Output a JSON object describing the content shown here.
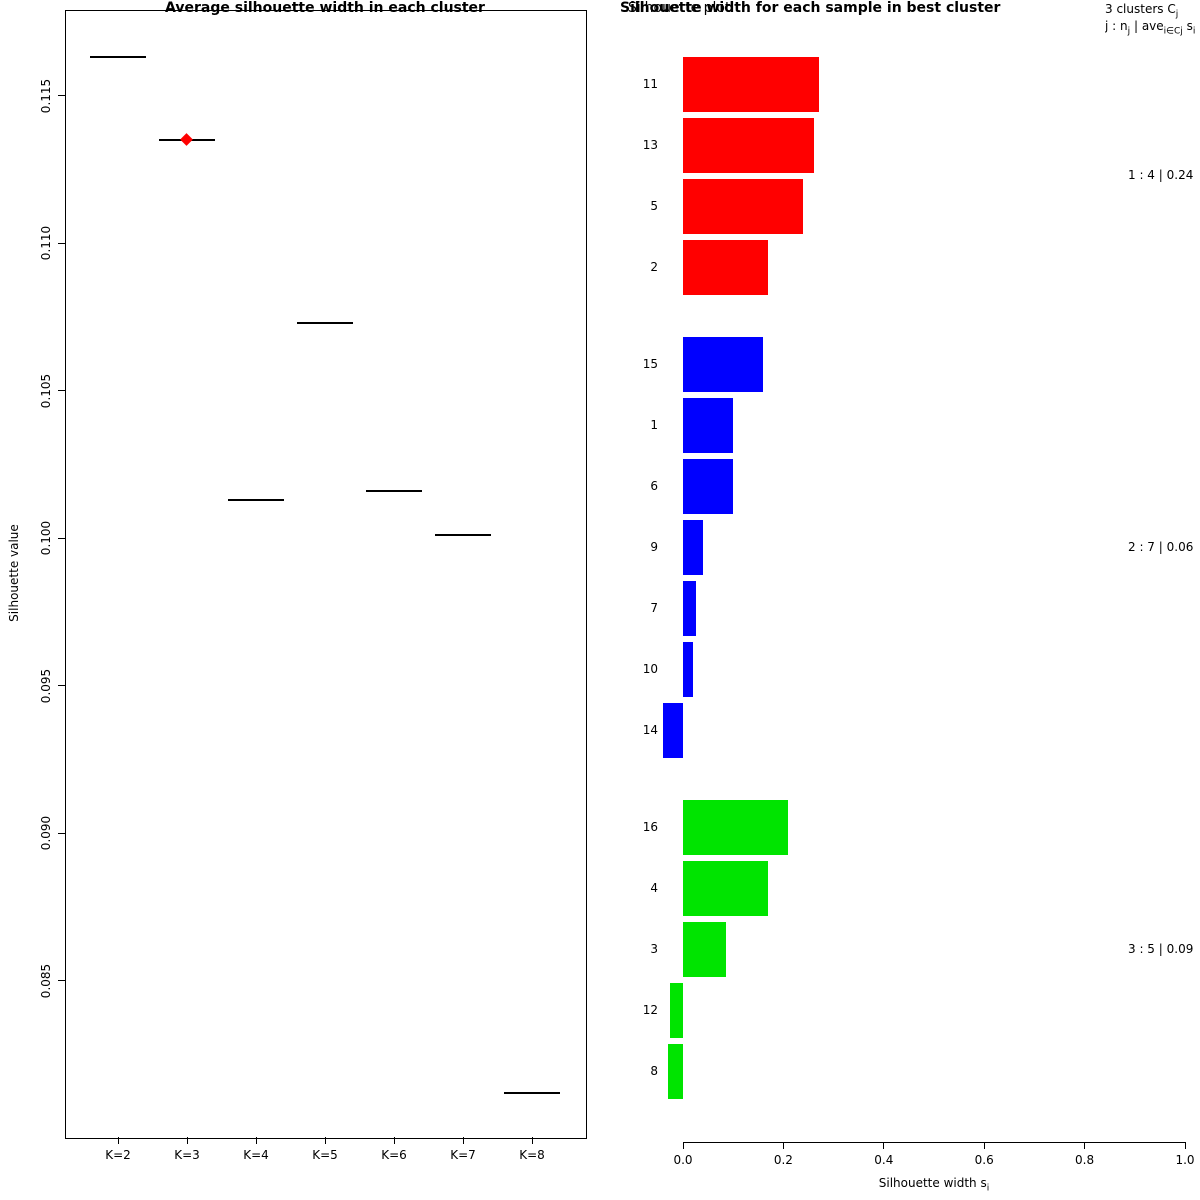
{
  "chart_data": [
    {
      "type": "scatter",
      "title": "Average silhouette width in each cluster",
      "ylabel": "Silhouette value",
      "categories": [
        "K=2",
        "K=3",
        "K=4",
        "K=5",
        "K=6",
        "K=7",
        "K=8"
      ],
      "values": [
        0.1163,
        0.1135,
        0.1013,
        0.1073,
        0.1016,
        0.1001,
        0.0812
      ],
      "best": {
        "category": "K=3",
        "value": 0.1135,
        "marker": "diamond",
        "color": "#ff0000"
      },
      "marker": "horizontal-dash",
      "marker_color": "#000000",
      "yticks": [
        "0.085",
        "0.090",
        "0.095",
        "0.100",
        "0.105",
        "0.110",
        "0.115"
      ],
      "ytick_values": [
        0.085,
        0.09,
        0.095,
        0.1,
        0.105,
        0.11,
        0.115
      ],
      "ylim": [
        0.0797,
        0.1179
      ],
      "grid": false
    },
    {
      "type": "bar",
      "orientation": "horizontal",
      "title": "Silhouette width for each sample in best cluster",
      "overlap_title": "Silhouette plot",
      "header_line1_parts": [
        "3  clusters  C",
        "j"
      ],
      "header_line2_parts": [
        "j :  n",
        "j",
        " | ave",
        "i∈Cj",
        " s",
        "i"
      ],
      "xlabel_parts": [
        "Silhouette width s",
        "i"
      ],
      "xticks": [
        "0.0",
        "0.2",
        "0.4",
        "0.6",
        "0.8",
        "1.0"
      ],
      "xtick_values": [
        0,
        0.2,
        0.4,
        0.6,
        0.8,
        1.0
      ],
      "xlim": [
        0,
        1
      ],
      "samples": [
        {
          "id": "11",
          "cluster": 1,
          "value": 0.27
        },
        {
          "id": "13",
          "cluster": 1,
          "value": 0.26
        },
        {
          "id": "5",
          "cluster": 1,
          "value": 0.24
        },
        {
          "id": "2",
          "cluster": 1,
          "value": 0.17
        },
        {
          "id": "15",
          "cluster": 2,
          "value": 0.16
        },
        {
          "id": "1",
          "cluster": 2,
          "value": 0.1
        },
        {
          "id": "6",
          "cluster": 2,
          "value": 0.1
        },
        {
          "id": "9",
          "cluster": 2,
          "value": 0.04
        },
        {
          "id": "7",
          "cluster": 2,
          "value": 0.025
        },
        {
          "id": "10",
          "cluster": 2,
          "value": 0.02
        },
        {
          "id": "14",
          "cluster": 2,
          "value": -0.04
        },
        {
          "id": "16",
          "cluster": 3,
          "value": 0.21
        },
        {
          "id": "4",
          "cluster": 3,
          "value": 0.17
        },
        {
          "id": "3",
          "cluster": 3,
          "value": 0.085
        },
        {
          "id": "12",
          "cluster": 3,
          "value": -0.025
        },
        {
          "id": "8",
          "cluster": 3,
          "value": -0.03
        }
      ],
      "clusters": [
        {
          "n": 1,
          "size": 4,
          "avg": 0.24,
          "color": "#ff0000",
          "label": "1 :  4  |  0.24"
        },
        {
          "n": 2,
          "size": 7,
          "avg": 0.06,
          "color": "#0000ff",
          "label": "2 :  7  |  0.06"
        },
        {
          "n": 3,
          "size": 5,
          "avg": 0.09,
          "color": "#00e400",
          "label": "3 :  5  |  0.09"
        }
      ]
    }
  ]
}
